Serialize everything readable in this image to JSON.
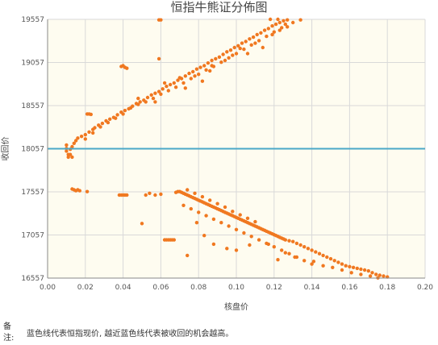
{
  "chart_data": {
    "type": "scatter",
    "title": "恒指牛熊证分佈图",
    "xlabel": "核盘价",
    "ylabel": "收回价",
    "xlim": [
      0,
      0.2
    ],
    "ylim": [
      16557,
      19557
    ],
    "x_ticks": [
      "0.00",
      "0.02",
      "0.04",
      "0.06",
      "0.08",
      "0.10",
      "0.12",
      "0.14",
      "0.16",
      "0.18",
      "0.20"
    ],
    "y_ticks": [
      "19557",
      "19057",
      "18557",
      "18057",
      "17557",
      "17057",
      "16557"
    ],
    "x_tick_values": [
      0,
      0.02,
      0.04,
      0.06,
      0.08,
      0.1,
      0.12,
      0.14,
      0.16,
      0.18,
      0.2
    ],
    "y_tick_values": [
      19557,
      19057,
      18557,
      18057,
      17557,
      17057,
      16557
    ],
    "reference_line": {
      "y": 18057,
      "color": "#4aa8c8"
    },
    "point_color": "#f07820",
    "plot_background": "#fefcf0",
    "grid": true,
    "series": [
      {
        "points": [
          [
            0.01,
            18100
          ],
          [
            0.01,
            18060
          ],
          [
            0.01,
            18030
          ],
          [
            0.011,
            17990
          ],
          [
            0.011,
            17960
          ],
          [
            0.012,
            18050
          ],
          [
            0.013,
            18080
          ],
          [
            0.014,
            18120
          ],
          [
            0.013,
            17960
          ],
          [
            0.012,
            17990
          ],
          [
            0.015,
            18150
          ],
          [
            0.016,
            18180
          ],
          [
            0.018,
            18200
          ],
          [
            0.02,
            18220
          ],
          [
            0.022,
            18250
          ],
          [
            0.024,
            18280
          ],
          [
            0.025,
            18300
          ],
          [
            0.027,
            18330
          ],
          [
            0.029,
            18350
          ],
          [
            0.031,
            18380
          ],
          [
            0.033,
            18400
          ],
          [
            0.035,
            18420
          ],
          [
            0.037,
            18450
          ],
          [
            0.039,
            18480
          ],
          [
            0.041,
            18500
          ],
          [
            0.043,
            18520
          ],
          [
            0.045,
            18550
          ],
          [
            0.047,
            18580
          ],
          [
            0.049,
            18600
          ],
          [
            0.051,
            18620
          ],
          [
            0.053,
            18650
          ],
          [
            0.055,
            18680
          ],
          [
            0.057,
            18700
          ],
          [
            0.059,
            18720
          ],
          [
            0.061,
            18750
          ],
          [
            0.063,
            18780
          ],
          [
            0.065,
            18800
          ],
          [
            0.067,
            18820
          ],
          [
            0.069,
            18850
          ],
          [
            0.071,
            18870
          ],
          [
            0.073,
            18900
          ],
          [
            0.075,
            18930
          ],
          [
            0.077,
            18950
          ],
          [
            0.079,
            18980
          ],
          [
            0.081,
            19000
          ],
          [
            0.083,
            19020
          ],
          [
            0.085,
            19050
          ],
          [
            0.087,
            19080
          ],
          [
            0.089,
            19100
          ],
          [
            0.091,
            19120
          ],
          [
            0.093,
            19150
          ],
          [
            0.095,
            19180
          ],
          [
            0.097,
            19200
          ],
          [
            0.099,
            19230
          ],
          [
            0.101,
            19250
          ],
          [
            0.103,
            19280
          ],
          [
            0.105,
            19300
          ],
          [
            0.107,
            19330
          ],
          [
            0.109,
            19350
          ],
          [
            0.111,
            19380
          ],
          [
            0.113,
            19400
          ],
          [
            0.115,
            19430
          ],
          [
            0.117,
            19450
          ],
          [
            0.119,
            19480
          ],
          [
            0.121,
            19500
          ],
          [
            0.123,
            19520
          ],
          [
            0.125,
            19540
          ],
          [
            0.127,
            19550
          ],
          [
            0.122,
            19557
          ],
          [
            0.118,
            19557
          ],
          [
            0.02,
            18170
          ],
          [
            0.024,
            18240
          ],
          [
            0.028,
            18310
          ],
          [
            0.032,
            18360
          ],
          [
            0.036,
            18410
          ],
          [
            0.04,
            18460
          ],
          [
            0.044,
            18530
          ],
          [
            0.048,
            18570
          ],
          [
            0.052,
            18600
          ],
          [
            0.056,
            18640
          ],
          [
            0.06,
            18690
          ],
          [
            0.064,
            18730
          ],
          [
            0.068,
            18770
          ],
          [
            0.072,
            18820
          ],
          [
            0.076,
            18870
          ],
          [
            0.08,
            18920
          ],
          [
            0.084,
            18970
          ],
          [
            0.088,
            19010
          ],
          [
            0.092,
            19060
          ],
          [
            0.096,
            19110
          ],
          [
            0.1,
            19160
          ],
          [
            0.104,
            19210
          ],
          [
            0.108,
            19260
          ],
          [
            0.112,
            19310
          ],
          [
            0.116,
            19360
          ],
          [
            0.12,
            19410
          ],
          [
            0.124,
            19460
          ],
          [
            0.126,
            19500
          ],
          [
            0.13,
            19520
          ],
          [
            0.134,
            19550
          ],
          [
            0.048,
            18640
          ],
          [
            0.062,
            18820
          ],
          [
            0.07,
            18880
          ],
          [
            0.078,
            18900
          ],
          [
            0.086,
            18960
          ],
          [
            0.094,
            19080
          ],
          [
            0.102,
            19220
          ],
          [
            0.106,
            19160
          ],
          [
            0.11,
            19280
          ],
          [
            0.114,
            19230
          ],
          [
            0.119,
            19380
          ],
          [
            0.123,
            19430
          ],
          [
            0.127,
            19470
          ],
          [
            0.087,
            19020
          ],
          [
            0.073,
            18760
          ],
          [
            0.057,
            18600
          ],
          [
            0.082,
            18840
          ],
          [
            0.098,
            19140
          ],
          [
            0.021,
            18460
          ],
          [
            0.022,
            18460
          ],
          [
            0.023,
            18455
          ],
          [
            0.039,
            19010
          ],
          [
            0.04,
            19020
          ],
          [
            0.041,
            19000
          ],
          [
            0.042,
            18990
          ],
          [
            0.059,
            19100
          ],
          [
            0.059,
            19550
          ],
          [
            0.06,
            19550
          ],
          [
            0.013,
            17590
          ],
          [
            0.014,
            17580
          ],
          [
            0.015,
            17570
          ],
          [
            0.016,
            17580
          ],
          [
            0.017,
            17570
          ],
          [
            0.021,
            17560
          ],
          [
            0.038,
            17520
          ],
          [
            0.039,
            17520
          ],
          [
            0.04,
            17520
          ],
          [
            0.041,
            17520
          ],
          [
            0.042,
            17520
          ],
          [
            0.05,
            17190
          ],
          [
            0.052,
            17520
          ],
          [
            0.054,
            17540
          ],
          [
            0.057,
            17520
          ],
          [
            0.06,
            17530
          ],
          [
            0.062,
            17000
          ],
          [
            0.063,
            17000
          ],
          [
            0.064,
            17000
          ],
          [
            0.065,
            17000
          ],
          [
            0.066,
            17000
          ],
          [
            0.067,
            17000
          ],
          [
            0.068,
            17550
          ],
          [
            0.069,
            17560
          ],
          [
            0.07,
            17560
          ],
          [
            0.071,
            17550
          ],
          [
            0.072,
            17540
          ],
          [
            0.073,
            17530
          ],
          [
            0.074,
            17520
          ],
          [
            0.075,
            17510
          ],
          [
            0.076,
            17500
          ],
          [
            0.077,
            17490
          ],
          [
            0.078,
            17480
          ],
          [
            0.079,
            17470
          ],
          [
            0.08,
            17460
          ],
          [
            0.081,
            17450
          ],
          [
            0.082,
            17440
          ],
          [
            0.083,
            17430
          ],
          [
            0.084,
            17420
          ],
          [
            0.085,
            17410
          ],
          [
            0.086,
            17400
          ],
          [
            0.087,
            17390
          ],
          [
            0.088,
            17380
          ],
          [
            0.089,
            17370
          ],
          [
            0.09,
            17360
          ],
          [
            0.091,
            17350
          ],
          [
            0.092,
            17340
          ],
          [
            0.093,
            17330
          ],
          [
            0.094,
            17320
          ],
          [
            0.095,
            17310
          ],
          [
            0.096,
            17300
          ],
          [
            0.097,
            17290
          ],
          [
            0.098,
            17280
          ],
          [
            0.099,
            17270
          ],
          [
            0.1,
            17260
          ],
          [
            0.101,
            17250
          ],
          [
            0.102,
            17240
          ],
          [
            0.103,
            17230
          ],
          [
            0.104,
            17220
          ],
          [
            0.105,
            17210
          ],
          [
            0.106,
            17200
          ],
          [
            0.107,
            17190
          ],
          [
            0.108,
            17180
          ],
          [
            0.109,
            17170
          ],
          [
            0.11,
            17160
          ],
          [
            0.111,
            17150
          ],
          [
            0.112,
            17140
          ],
          [
            0.113,
            17130
          ],
          [
            0.114,
            17120
          ],
          [
            0.115,
            17110
          ],
          [
            0.116,
            17100
          ],
          [
            0.117,
            17090
          ],
          [
            0.118,
            17080
          ],
          [
            0.119,
            17070
          ],
          [
            0.12,
            17060
          ],
          [
            0.121,
            17050
          ],
          [
            0.122,
            17040
          ],
          [
            0.123,
            17030
          ],
          [
            0.124,
            17020
          ],
          [
            0.125,
            17010
          ],
          [
            0.126,
            17000
          ],
          [
            0.128,
            16990
          ],
          [
            0.13,
            16980
          ],
          [
            0.132,
            16960
          ],
          [
            0.134,
            16940
          ],
          [
            0.136,
            16920
          ],
          [
            0.138,
            16900
          ],
          [
            0.14,
            16880
          ],
          [
            0.142,
            16860
          ],
          [
            0.144,
            16840
          ],
          [
            0.146,
            16820
          ],
          [
            0.148,
            16800
          ],
          [
            0.15,
            16780
          ],
          [
            0.152,
            16760
          ],
          [
            0.154,
            16740
          ],
          [
            0.156,
            16720
          ],
          [
            0.158,
            16700
          ],
          [
            0.16,
            16690
          ],
          [
            0.162,
            16680
          ],
          [
            0.164,
            16670
          ],
          [
            0.166,
            16660
          ],
          [
            0.168,
            16650
          ],
          [
            0.17,
            16640
          ],
          [
            0.172,
            16620
          ],
          [
            0.174,
            16600
          ],
          [
            0.176,
            16590
          ],
          [
            0.178,
            16580
          ],
          [
            0.18,
            16570
          ],
          [
            0.175,
            16560
          ],
          [
            0.074,
            17580
          ],
          [
            0.078,
            17540
          ],
          [
            0.082,
            17500
          ],
          [
            0.086,
            17460
          ],
          [
            0.09,
            17420
          ],
          [
            0.094,
            17380
          ],
          [
            0.098,
            17330
          ],
          [
            0.102,
            17290
          ],
          [
            0.106,
            17250
          ],
          [
            0.11,
            17210
          ],
          [
            0.072,
            17400
          ],
          [
            0.076,
            17360
          ],
          [
            0.08,
            17320
          ],
          [
            0.084,
            17280
          ],
          [
            0.088,
            17240
          ],
          [
            0.092,
            17200
          ],
          [
            0.096,
            17160
          ],
          [
            0.1,
            17120
          ],
          [
            0.104,
            17080
          ],
          [
            0.108,
            17040
          ],
          [
            0.112,
            17000
          ],
          [
            0.116,
            16960
          ],
          [
            0.12,
            16920
          ],
          [
            0.124,
            16880
          ],
          [
            0.128,
            16840
          ],
          [
            0.132,
            16800
          ],
          [
            0.136,
            16760
          ],
          [
            0.14,
            16720
          ],
          [
            0.079,
            17200
          ],
          [
            0.083,
            17050
          ],
          [
            0.088,
            16950
          ],
          [
            0.095,
            16900
          ],
          [
            0.1,
            16880
          ],
          [
            0.107,
            16940
          ],
          [
            0.117,
            16950
          ],
          [
            0.126,
            16850
          ],
          [
            0.131,
            16800
          ],
          [
            0.141,
            16750
          ],
          [
            0.146,
            16700
          ],
          [
            0.151,
            16680
          ],
          [
            0.156,
            16650
          ],
          [
            0.161,
            16620
          ],
          [
            0.166,
            16600
          ],
          [
            0.171,
            16580
          ],
          [
            0.074,
            16820
          ],
          [
            0.122,
            16770
          ]
        ]
      }
    ]
  },
  "note": {
    "label": "备\n注:",
    "text": "蓝色线代表恒指现价, 越近蓝色线代表被收回的机会越高。"
  }
}
